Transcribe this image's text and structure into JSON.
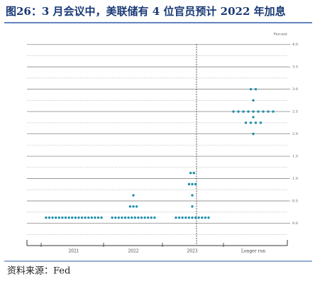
{
  "title": "图26：3 月会议中，美联储有 4 位官员预计 2022 年加息",
  "source": "资料来源：Fed",
  "chart_data": {
    "type": "dotplot",
    "color": "#1e8fa8",
    "y_axis_label": "Percent",
    "categories": [
      "2021",
      "2022",
      "2023",
      "Longer run"
    ],
    "dots": [
      [
        0.125,
        0.125,
        0.125,
        0.125,
        0.125,
        0.125,
        0.125,
        0.125,
        0.125,
        0.125,
        0.125,
        0.125,
        0.125,
        0.125,
        0.125,
        0.125,
        0.125,
        0.125
      ],
      [
        0.125,
        0.125,
        0.125,
        0.125,
        0.125,
        0.125,
        0.125,
        0.125,
        0.125,
        0.125,
        0.125,
        0.125,
        0.125,
        0.125,
        0.375,
        0.375,
        0.375,
        0.625
      ],
      [
        0.125,
        0.125,
        0.125,
        0.125,
        0.125,
        0.125,
        0.125,
        0.125,
        0.125,
        0.125,
        0.125,
        0.375,
        0.625,
        0.875,
        0.875,
        0.875,
        1.125,
        1.125
      ],
      [
        2.0,
        2.25,
        2.25,
        2.25,
        2.25,
        2.375,
        2.5,
        2.5,
        2.5,
        2.5,
        2.5,
        2.5,
        2.5,
        2.5,
        2.5,
        2.75,
        3.0,
        3.0
      ]
    ],
    "ylim": [
      -0.5,
      4.25
    ],
    "yticks": [
      {
        "value": 0,
        "label": "0.0"
      },
      {
        "value": 0.5,
        "label": "0.5"
      },
      {
        "value": 1,
        "label": "1.0"
      },
      {
        "value": 1.5,
        "label": "1.5"
      },
      {
        "value": 2,
        "label": "2.0"
      },
      {
        "value": 2.5,
        "label": "2.5"
      },
      {
        "value": 3,
        "label": "3.0"
      },
      {
        "value": 3.5,
        "label": "3.5"
      },
      {
        "value": 4,
        "label": "4.0"
      }
    ],
    "minor_yticks": [
      -0.25,
      0.25,
      0.75,
      1.25,
      1.75,
      2.25,
      2.75,
      3.25,
      3.75
    ],
    "grid": true
  }
}
